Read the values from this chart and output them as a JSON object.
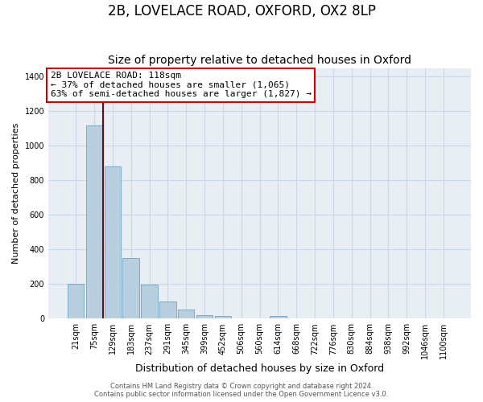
{
  "title": "2B, LOVELACE ROAD, OXFORD, OX2 8LP",
  "subtitle": "Size of property relative to detached houses in Oxford",
  "xlabel": "Distribution of detached houses by size in Oxford",
  "ylabel": "Number of detached properties",
  "bar_labels": [
    "21sqm",
    "75sqm",
    "129sqm",
    "183sqm",
    "237sqm",
    "291sqm",
    "345sqm",
    "399sqm",
    "452sqm",
    "506sqm",
    "560sqm",
    "614sqm",
    "668sqm",
    "722sqm",
    "776sqm",
    "830sqm",
    "884sqm",
    "938sqm",
    "992sqm",
    "1046sqm",
    "1100sqm"
  ],
  "bar_heights": [
    200,
    1120,
    880,
    350,
    195,
    100,
    55,
    20,
    15,
    0,
    0,
    15,
    0,
    0,
    0,
    0,
    0,
    0,
    0,
    0,
    0
  ],
  "bar_color": "#b8cfe0",
  "bar_edge_color": "#7aaac8",
  "vline_x_index": 1.5,
  "vline_color": "#8b0000",
  "annotation_title": "2B LOVELACE ROAD: 118sqm",
  "annotation_line1": "← 37% of detached houses are smaller (1,065)",
  "annotation_line2": "63% of semi-detached houses are larger (1,827) →",
  "annotation_box_facecolor": "#ffffff",
  "annotation_box_edgecolor": "#cc0000",
  "ylim": [
    0,
    1450
  ],
  "yticks": [
    0,
    200,
    400,
    600,
    800,
    1000,
    1200,
    1400
  ],
  "footer1": "Contains HM Land Registry data © Crown copyright and database right 2024.",
  "footer2": "Contains public sector information licensed under the Open Government Licence v3.0.",
  "fig_background": "#ffffff",
  "plot_background": "#e8eef4",
  "grid_color": "#c8d8e8",
  "title_fontsize": 12,
  "subtitle_fontsize": 10,
  "ylabel_fontsize": 8,
  "xlabel_fontsize": 9,
  "tick_fontsize": 7,
  "annotation_fontsize": 8,
  "footer_fontsize": 6
}
